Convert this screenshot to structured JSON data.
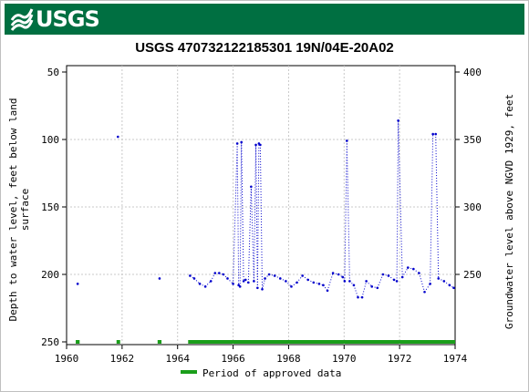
{
  "header": {
    "agency": "USGS"
  },
  "chart_data": {
    "type": "scatter",
    "title": "USGS 470732122185301 19N/04E-20A02",
    "y_left_label_lines": [
      "Depth to water level, feet below land",
      "surface"
    ],
    "y_right_label": "Groundwater level above NGVD 1929, feet",
    "xlim": [
      1960,
      1974
    ],
    "ylim_left": [
      250,
      50
    ],
    "ylim_right": [
      200,
      400
    ],
    "x_ticks": [
      "1960",
      "1962",
      "1964",
      "1966",
      "1968",
      "1970",
      "1972",
      "1974"
    ],
    "y_left_ticks": [
      "50",
      "100",
      "150",
      "200",
      "250"
    ],
    "y_right_ticks": [
      "400",
      "350",
      "300",
      "250"
    ],
    "series": [
      {
        "color": "#0000cc",
        "x": [
          1960.4,
          1961.85,
          1963.35,
          1964.45,
          1964.6,
          1964.8,
          1965.0,
          1965.2,
          1965.35,
          1965.5,
          1965.65,
          1965.8,
          1966.0,
          1966.15,
          1966.2,
          1966.25,
          1966.3,
          1966.38,
          1966.45,
          1966.55,
          1966.65,
          1966.75,
          1966.82,
          1966.88,
          1966.93,
          1966.98,
          1967.05,
          1967.15,
          1967.3,
          1967.5,
          1967.7,
          1967.9,
          1968.1,
          1968.3,
          1968.5,
          1968.7,
          1968.9,
          1969.1,
          1969.25,
          1969.4,
          1969.6,
          1969.8,
          1969.95,
          1970.02,
          1970.1,
          1970.2,
          1970.35,
          1970.5,
          1970.65,
          1970.8,
          1971.0,
          1971.2,
          1971.4,
          1971.6,
          1971.8,
          1971.9,
          1971.95,
          1972.1,
          1972.3,
          1972.5,
          1972.7,
          1972.9,
          1973.1,
          1973.2,
          1973.3,
          1973.4,
          1973.6,
          1973.8,
          1973.95
        ],
        "y": [
          207,
          98,
          203,
          201,
          203,
          207,
          209,
          205,
          199,
          199,
          200,
          203,
          207,
          103,
          208,
          209,
          102,
          205,
          204,
          206,
          135,
          205,
          104,
          210,
          103,
          104,
          211,
          203,
          200,
          201,
          203,
          205,
          209,
          206,
          201,
          204,
          206,
          207,
          208,
          212,
          199,
          200,
          202,
          205,
          101,
          205,
          208,
          217,
          217,
          205,
          209,
          210,
          200,
          201,
          204,
          205,
          86,
          202,
          195,
          196,
          199,
          213,
          207,
          96,
          96,
          203,
          205,
          208,
          210
        ]
      }
    ],
    "approved_periods": [
      {
        "start": 1960.33,
        "end": 1960.47
      },
      {
        "start": 1961.8,
        "end": 1961.93
      },
      {
        "start": 1963.28,
        "end": 1963.42
      },
      {
        "start": 1964.38,
        "end": 1974.0
      }
    ],
    "approved_color": "#1a9e1a",
    "legend": {
      "label": "Period of approved data",
      "position": "bottom"
    }
  }
}
